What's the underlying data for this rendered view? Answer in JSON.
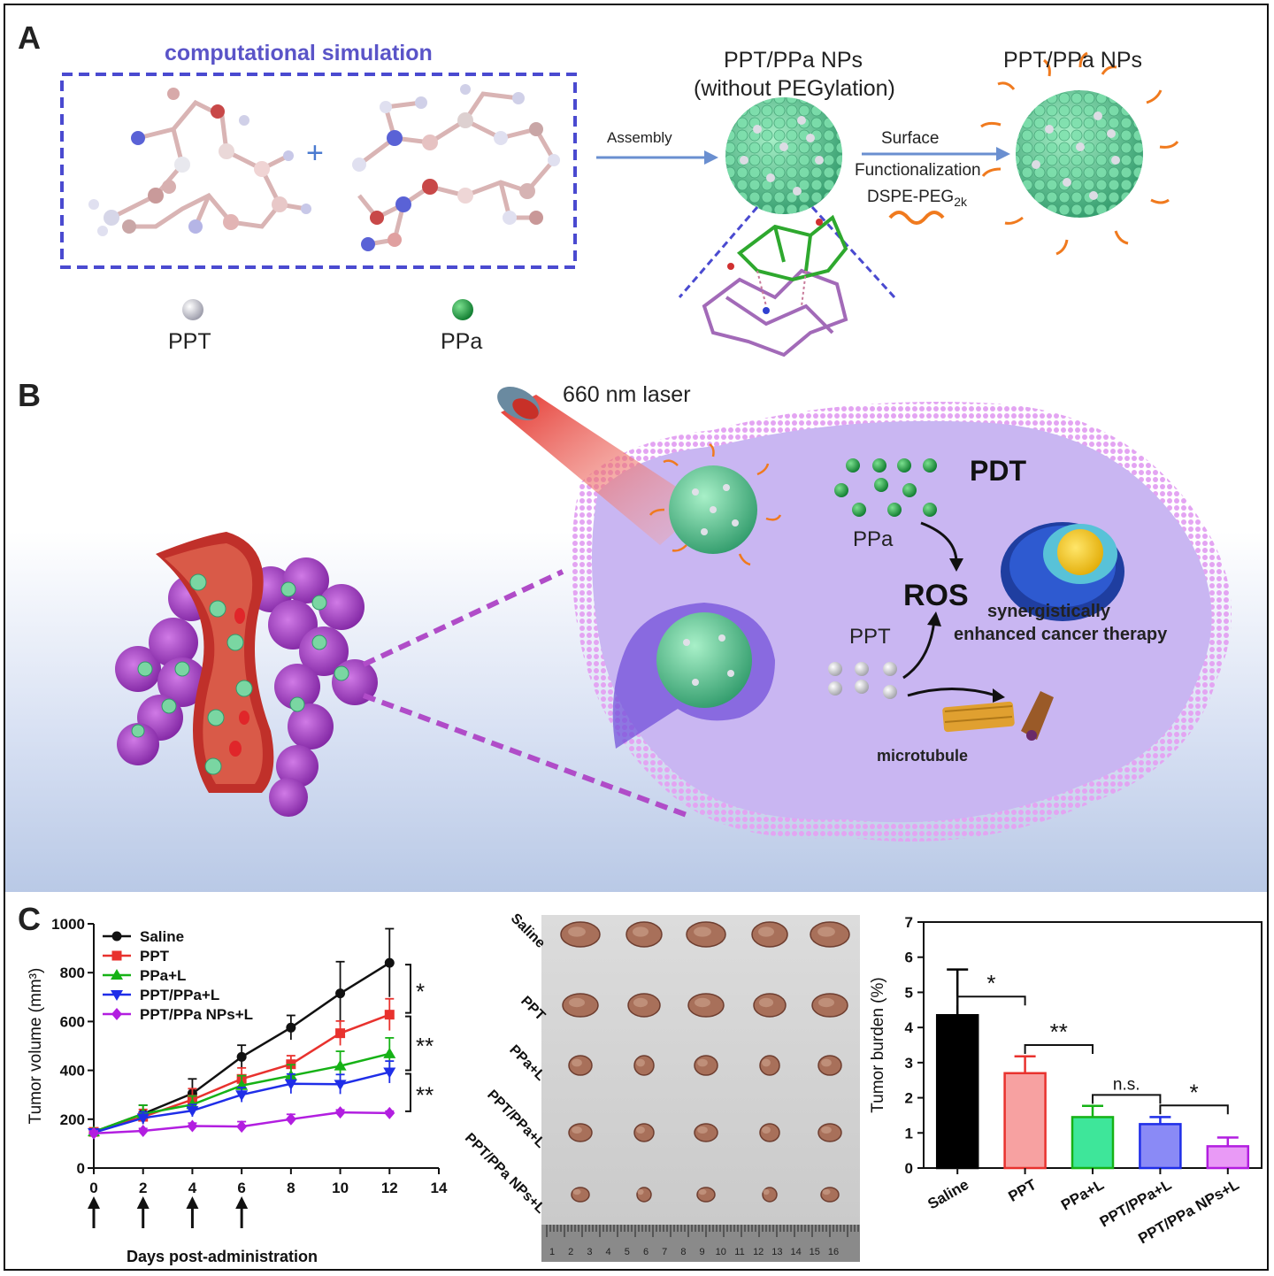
{
  "panel_a": {
    "label": "A",
    "sim_title": "computational simulation",
    "plus": "+",
    "ppt_label": "PPT",
    "ppa_label": "PPa",
    "np_no_peg_title_1": "PPT/PPa NPs",
    "np_no_peg_title_2": "(without PEGylation)",
    "np_title": "PPT/PPa NPs",
    "assembly": "Assembly",
    "surface": "Surface",
    "functionalization": "Functionalization",
    "dspe": "DSPE-PEG",
    "dspe_sub": "2k",
    "colors": {
      "ppt": "#d9d9e0",
      "ppa": "#22a24a",
      "np": "#6fd6a0",
      "peg": "#f07a1e",
      "dash": "#4a4ad0"
    }
  },
  "panel_b": {
    "label": "B",
    "laser": "660 nm laser",
    "pdt": "PDT",
    "ppa": "PPa",
    "ros": "ROS",
    "ppt": "PPT",
    "synergy_1": "synergistically",
    "synergy_2": "enhanced cancer therapy",
    "microtubule": "microtubule",
    "colors": {
      "cell": "#c9b4ef",
      "membrane": "#d79ef0",
      "vessel": "#c0302a",
      "tumor": "#a63fc4"
    }
  },
  "panel_c": {
    "label": "C",
    "line_chart": {
      "ylabel": "Tumor volume (mm³)",
      "xlabel": "Days post-administration",
      "sig": [
        "*",
        "**",
        "**"
      ]
    },
    "photo_rows": [
      "Saline",
      "PPT",
      "PPa+L",
      "PPT/PPa+L",
      "PPT/PPa NPs+L"
    ],
    "ruler_numbers": [
      "1",
      "2",
      "3",
      "4",
      "5",
      "6",
      "7",
      "8",
      "9",
      "10",
      "11",
      "12",
      "13",
      "14",
      "15",
      "16"
    ],
    "bar_chart": {
      "ylabel": "Tumor burden (%)",
      "sig": [
        "*",
        "**",
        "n.s.",
        "*"
      ]
    }
  },
  "chart_data": [
    {
      "type": "line",
      "ylabel": "Tumor volume (mm³)",
      "xlabel": "Days post-administration",
      "x": [
        0,
        2,
        4,
        6,
        8,
        10,
        12
      ],
      "xlim": [
        0,
        14
      ],
      "ylim": [
        0,
        1000
      ],
      "xticks": [
        "0",
        "2",
        "4",
        "6",
        "8",
        "10",
        "12",
        "14"
      ],
      "yticks": [
        "0",
        "200",
        "400",
        "600",
        "800",
        "1000"
      ],
      "legend": "top-left",
      "dosing_days": [
        0,
        2,
        4,
        6
      ],
      "series": [
        {
          "name": "Saline",
          "color": "#111111",
          "marker": "circle",
          "values": [
            148,
            222,
            305,
            455,
            575,
            715,
            840
          ],
          "errors": [
            12,
            35,
            60,
            48,
            50,
            130,
            140
          ]
        },
        {
          "name": "PPT",
          "color": "#e8322e",
          "marker": "square",
          "values": [
            148,
            210,
            280,
            365,
            425,
            552,
            628
          ],
          "errors": [
            12,
            30,
            45,
            45,
            35,
            50,
            65
          ]
        },
        {
          "name": "PPa+L",
          "color": "#16b216",
          "marker": "triangle-up",
          "values": [
            148,
            222,
            260,
            338,
            378,
            418,
            468
          ],
          "errors": [
            12,
            35,
            35,
            40,
            45,
            60,
            65
          ]
        },
        {
          "name": "PPT/PPa+L",
          "color": "#1f2ee8",
          "marker": "triangle-down",
          "values": [
            145,
            205,
            235,
            300,
            345,
            343,
            393
          ],
          "errors": [
            10,
            25,
            25,
            30,
            40,
            40,
            45
          ]
        },
        {
          "name": "PPT/PPa NPs+L",
          "color": "#b21ee0",
          "marker": "diamond",
          "values": [
            142,
            152,
            172,
            170,
            200,
            228,
            225
          ],
          "errors": [
            10,
            10,
            12,
            20,
            20,
            10,
            8
          ]
        }
      ]
    },
    {
      "type": "bar",
      "ylabel": "Tumor burden (%)",
      "categories": [
        "Saline",
        "PPT",
        "PPa+L",
        "PPT/PPa+L",
        "PPT/PPa NPs+L"
      ],
      "values": [
        4.35,
        2.7,
        1.45,
        1.25,
        0.62
      ],
      "errors": [
        1.3,
        0.48,
        0.32,
        0.2,
        0.25
      ],
      "colors": [
        "#000000",
        "#f7a1a1",
        "#3ee69a",
        "#8a8af6",
        "#e99af6"
      ],
      "edge_colors": [
        "#000000",
        "#e8322e",
        "#16b216",
        "#1f2ee8",
        "#b21ee0"
      ],
      "ylim": [
        0,
        7
      ],
      "yticks": [
        "0",
        "1",
        "2",
        "3",
        "4",
        "5",
        "6",
        "7"
      ]
    }
  ]
}
